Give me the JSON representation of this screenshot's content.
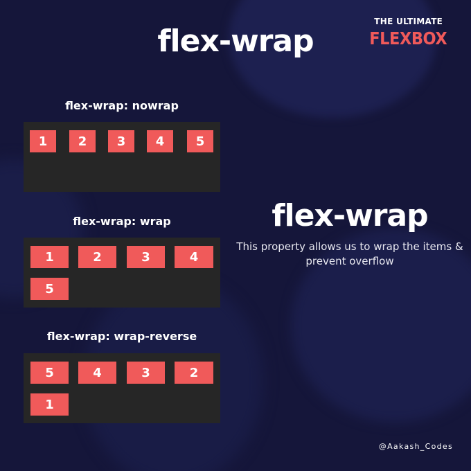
{
  "title": "flex-wrap",
  "brand": {
    "small": "THE ULTIMATE",
    "big": "FLEXBOX"
  },
  "demos": [
    {
      "label": "flex-wrap: nowrap",
      "items": [
        "1",
        "2",
        "3",
        "4",
        "5"
      ]
    },
    {
      "label": "flex-wrap: wrap",
      "items": [
        "1",
        "2",
        "3",
        "4",
        "5"
      ]
    },
    {
      "label": "flex-wrap: wrap-reverse",
      "items": [
        "5",
        "4",
        "3",
        "2",
        "1"
      ]
    }
  ],
  "side": {
    "title": "flex-wrap",
    "description": "This property allows us to wrap the items & prevent overflow"
  },
  "handle": "@Aakash_Codes",
  "colors": {
    "background": "#15163a",
    "item": "#f05a5a",
    "container": "#262626",
    "brand": "#f05a5a"
  }
}
